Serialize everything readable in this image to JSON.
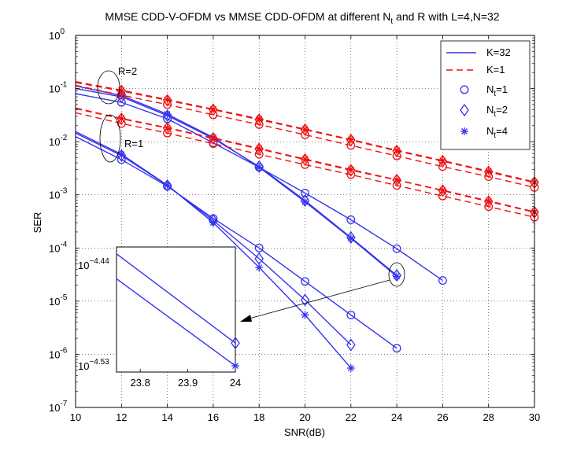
{
  "chart_data": {
    "type": "line",
    "title": "MMSE CDD-V-OFDM vs MMSE CDD-OFDM at different N",
    "title_sub": "t",
    "title_tail": " and R with L=4,N=32",
    "xlabel": "SNR(dB)",
    "ylabel": "SER",
    "xlim": [
      10,
      30
    ],
    "ylim_log10": [
      -7,
      0
    ],
    "grid": true,
    "x_ticks": [
      "10",
      "12",
      "14",
      "16",
      "18",
      "20",
      "22",
      "24",
      "26",
      "28",
      "30"
    ],
    "y_tick_exponents": [
      "0",
      "-1",
      "-2",
      "-3",
      "-4",
      "-5",
      "-6",
      "-7"
    ],
    "y_tick_base": "10",
    "legend": {
      "position": "top-right",
      "entries": [
        {
          "label": "K=32",
          "style": "solid-blue"
        },
        {
          "label": "K=1",
          "style": "dashed-red"
        },
        {
          "label": "N",
          "sub": "t",
          "tail": "=1",
          "marker": "circle"
        },
        {
          "label": "N",
          "sub": "t",
          "tail": "=2",
          "marker": "diamond"
        },
        {
          "label": "N",
          "sub": "t",
          "tail": "=4",
          "marker": "star"
        }
      ]
    },
    "colors": {
      "k32": "#3333ee",
      "k1": "#ee1111"
    },
    "series": [
      {
        "name": "K=32, R=2, Nt=1",
        "marker": "circle",
        "style": "solid",
        "x": [
          10,
          12,
          14,
          16,
          18,
          20,
          22,
          24,
          26
        ],
        "y": [
          0.08,
          0.055,
          0.027,
          0.0095,
          0.0033,
          0.00108,
          0.00034,
          9.7e-05,
          2.45e-05
        ]
      },
      {
        "name": "K=32, R=2, Nt=2",
        "marker": "diamond",
        "style": "solid",
        "x": [
          10,
          12,
          14,
          16,
          18,
          20,
          22,
          24
        ],
        "y": [
          0.1,
          0.07,
          0.031,
          0.0115,
          0.0034,
          0.00078,
          0.000158,
          3.05e-05
        ]
      },
      {
        "name": "K=32, R=2, Nt=4",
        "marker": "star",
        "style": "solid",
        "x": [
          10,
          12,
          14,
          16,
          18,
          20,
          22,
          24
        ],
        "y": [
          0.112,
          0.074,
          0.033,
          0.012,
          0.0033,
          0.00074,
          0.000152,
          2.92e-05
        ]
      },
      {
        "name": "K=32, R=1, Nt=1",
        "marker": "circle",
        "style": "solid",
        "x": [
          10,
          12,
          14,
          16,
          18,
          20,
          22,
          24
        ],
        "y": [
          0.0125,
          0.0046,
          0.00145,
          0.00036,
          0.0001,
          2.35e-05,
          5.5e-06,
          1.3e-06
        ]
      },
      {
        "name": "K=32, R=1, Nt=2",
        "marker": "diamond",
        "style": "solid",
        "x": [
          10,
          12,
          14,
          16,
          18,
          20,
          22
        ],
        "y": [
          0.0145,
          0.0055,
          0.0015,
          0.00033,
          6.3e-05,
          1.05e-05,
          1.5e-06
        ]
      },
      {
        "name": "K=32, R=1, Nt=4",
        "marker": "star",
        "style": "solid",
        "x": [
          10,
          12,
          14,
          16,
          18,
          20,
          22
        ],
        "y": [
          0.0155,
          0.0058,
          0.00152,
          0.0003,
          4.3e-05,
          5.5e-06,
          5.5e-07
        ]
      },
      {
        "name": "K=1, R=2, Nt=1",
        "marker": "circle",
        "style": "dashed",
        "x": [
          10,
          12,
          14,
          16,
          18,
          20,
          22,
          24,
          26,
          28,
          30
        ],
        "y": [
          0.115,
          0.075,
          0.05,
          0.032,
          0.021,
          0.0135,
          0.0085,
          0.0054,
          0.0034,
          0.0022,
          0.00138
        ]
      },
      {
        "name": "K=1, R=2, Nt=2",
        "marker": "diamond",
        "style": "dashed",
        "x": [
          10,
          12,
          14,
          16,
          18,
          20,
          22,
          24,
          26,
          28,
          30
        ],
        "y": [
          0.13,
          0.09,
          0.06,
          0.04,
          0.026,
          0.0168,
          0.0107,
          0.0067,
          0.0043,
          0.0027,
          0.0017
        ]
      },
      {
        "name": "K=1, R=2, Nt=4",
        "marker": "star",
        "style": "dashed",
        "x": [
          10,
          12,
          14,
          16,
          18,
          20,
          22,
          24,
          26,
          28,
          30
        ],
        "y": [
          0.135,
          0.093,
          0.062,
          0.041,
          0.027,
          0.0172,
          0.011,
          0.0069,
          0.0044,
          0.0028,
          0.00175
        ]
      },
      {
        "name": "K=1, R=1, Nt=1",
        "marker": "circle",
        "style": "dashed",
        "x": [
          10,
          12,
          14,
          16,
          18,
          20,
          22,
          24,
          26,
          28,
          30
        ],
        "y": [
          0.035,
          0.022,
          0.0145,
          0.0092,
          0.0058,
          0.0037,
          0.0024,
          0.0015,
          0.00095,
          0.0006,
          0.00038
        ]
      },
      {
        "name": "K=1, R=1, Nt=2",
        "marker": "diamond",
        "style": "dashed",
        "x": [
          10,
          12,
          14,
          16,
          18,
          20,
          22,
          24,
          26,
          28,
          30
        ],
        "y": [
          0.042,
          0.027,
          0.018,
          0.0115,
          0.0073,
          0.0046,
          0.0029,
          0.0019,
          0.0012,
          0.00075,
          0.00047
        ]
      },
      {
        "name": "K=1, R=1, Nt=4",
        "marker": "star",
        "style": "dashed",
        "x": [
          10,
          12,
          14,
          16,
          18,
          20,
          22,
          24,
          26,
          28,
          30
        ],
        "y": [
          0.043,
          0.0275,
          0.0183,
          0.0118,
          0.0075,
          0.0047,
          0.003,
          0.00192,
          0.00122,
          0.00077,
          0.00048
        ]
      }
    ],
    "annotations": [
      {
        "text": "R=2",
        "x": 11.9,
        "y": 0.18
      },
      {
        "text": "R=1",
        "x": 12.1,
        "y": 0.0085
      }
    ],
    "inset": {
      "xlim": [
        23.75,
        24
      ],
      "ylim_log10": [
        -4.54,
        -4.43
      ],
      "x_ticks": [
        "23.8",
        "23.9",
        "24"
      ],
      "y_label_top_exp": "−4.44",
      "y_label_bottom_exp": "−4.53",
      "lines": [
        {
          "name": "Nt=2",
          "x": [
            23.75,
            24
          ],
          "y_log10": [
            -4.436,
            -4.5145
          ],
          "end_marker": "diamond"
        },
        {
          "name": "Nt=4",
          "x": [
            23.75,
            24
          ],
          "y_log10": [
            -4.458,
            -4.5345
          ],
          "end_marker": "star"
        }
      ]
    }
  }
}
